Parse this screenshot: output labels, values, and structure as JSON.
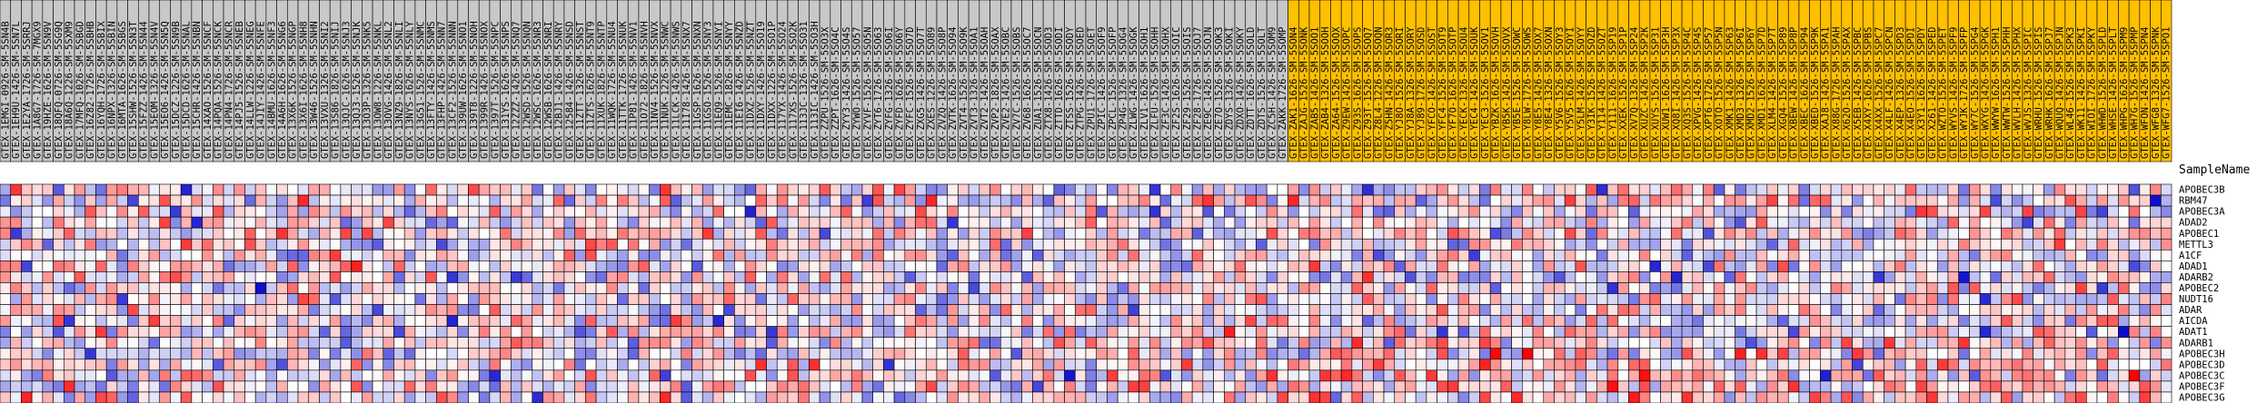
{
  "chart_data": {
    "type": "heatmap",
    "sample_name_label": "SampleName",
    "rows": [
      "APOBEC3B",
      "RBM47",
      "APOBEC3A",
      "ADAD2",
      "APOBEC1",
      "METTL3",
      "A1CF",
      "ADAD1",
      "ADARB2",
      "APOBEC2",
      "NUDT16",
      "ADAR",
      "AICDA",
      "ADAT1",
      "ADARB1",
      "APOBEC3H",
      "APOBEC3D",
      "APOBEC3C",
      "APOBEC3F",
      "APOBEC3G"
    ],
    "columns": [
      "GTEX-1EMGI-0926-SM-5SN4B",
      "GTEX-1EH9U-1426-SM-5SN7L",
      "GTEX-1E2YA-1726-SM-5SRRJ",
      "GTEX-1A8G7-1726-SM-7MGX9",
      "GTEX-19HZE-1626-SM-5SN9V",
      "GTEX-18QFQ-0726-SM-5SG9Q",
      "GTEX-18A6Q-1226-SM-5SXM9",
      "GTEX-17MFQ-1026-SM-5SBGD",
      "GTEX-16Z82-1726-SM-5SBHB",
      "GTEX-16YQH-1726-SM-5SBIX",
      "GTEX-16NPX-1326-SM-5SBIN",
      "GTEX-16MTA-1626-SM-5SBGS",
      "GTEX-15SHW-1526-SM-5SN3T",
      "GTEX-15FZZ-1426-SM-5SN44",
      "GTEX-15EOM-1326-SM-5SN4V",
      "GTEX-15EO6-1426-SM-5SN5Q",
      "GTEX-15DCZ-1226-SM-5SN9B",
      "GTEX-15DCD-1626-SM-5SNAL",
      "GTEX-15CHR-1426-SM-5SNBN",
      "GTEX-14XAO-1526-SM-5SNCF",
      "GTEX-14PQA-1526-SM-5SNCK",
      "GTEX-14PN4-1726-SM-5SNCR",
      "GTEX-14PJ5-1526-SM-5SNEB",
      "GTEX-14LLW-1226-SM-5SNEG",
      "GTEX-14JIY-1426-SM-5SNFE",
      "GTEX-14BMU-1626-SM-5SNF3",
      "GTEX-14A6H-1626-SM-5SNG6",
      "GTEX-13X6K-1526-SM-5SNGP",
      "GTEX-13X6I-1626-SM-5SNH8",
      "GTEX-13W46-1526-SM-5SNHN",
      "GTEX-13VXU-1326-SM-5SNI2",
      "GTEX-13S86-1826-SM-5SNIJ",
      "GTEX-13QJC-1626-SM-5SNJ3",
      "GTEX-13QJ3-1526-SM-5SNJK",
      "GTEX-13O3P-1326-SM-5SNK5",
      "GTEX-13OW8-1226-SM-5SNKL",
      "GTEX-13OVG-1426-SM-5SNL2",
      "GTEX-13NZ9-1826-SM-5SNLI",
      "GTEX-13NYS-1626-SM-5SNLY",
      "GTEX-13G51-1526-SM-5SNMC",
      "GTEX-13FTY-1426-SM-5SNMS",
      "GTEX-13FHP-1426-SM-5SNN7",
      "GTEX-13CF2-1526-SM-5SNNN",
      "GTEX-139UW-1626-SM-5SNO1",
      "GTEX-139T8-1226-SM-5SNOH",
      "GTEX-1399R-1426-SM-5SNOX",
      "GTEX-1397T-1526-SM-5SNPC",
      "GTEX-131YS-1626-SM-5SNPS",
      "GTEX-12ZZZ-1426-SM-5SNQ7",
      "GTEX-12WSD-1526-SM-5SNQN",
      "GTEX-12WSC-1626-SM-5SNR3",
      "GTEX-12WSB-1626-SM-5SNRI",
      "GTEX-12BJ1-1426-SM-5SNRY",
      "GTEX-12584-1426-SM-5SNSD",
      "GTEX-11ZTT-1326-SM-5SNST",
      "GTEX-11ZTS-1626-SM-5SNT9",
      "GTEX-11XUK-1826-SM-5SNTP",
      "GTEX-11WQK-1726-SM-5SNU4",
      "GTEX-11TTK-1726-SM-5SNUK",
      "GTEX-11P81-1426-SM-5SNV1",
      "GTEX-11O72-1826-SM-5SNVH",
      "GTEX-11NV4-1526-SM-5SNVX",
      "GTEX-11NUK-1226-SM-5SNWC",
      "GTEX-11LCK-1426-SM-5SNWS",
      "GTEX-11I78-1426-SM-5SNX7",
      "GTEX-11GSP-1626-SM-5SNXN",
      "GTEX-11GSO-1526-SM-5SNY3",
      "GTEX-11EQ9-1526-SM-5SNYI",
      "GTEX-11EMC-1826-SM-5SNYY",
      "GTEX-11EI6-1426-SM-5SNZD",
      "GTEX-11DXZ-1526-SM-5SNZT",
      "GTEX-11DXY-1426-SM-5SO19",
      "GTEX-11DXX-1226-SM-5SO1P",
      "GTEX-117YX-1426-SM-5SO24",
      "GTEX-117XS-1526-SM-5SO2K",
      "GTEX-113JC-1326-SM-5SO31",
      "GTEX-113IC-1426-SM-5SO3H",
      "GTEX-ZZPU-1526-SM-5SO3X",
      "GTEX-ZZPT-1626-SM-5SO4C",
      "GTEX-ZYY3-1426-SM-5SO4S",
      "GTEX-ZYWO-1526-SM-5SO57",
      "GTEX-ZYVF-1526-SM-5SO5N",
      "GTEX-ZYT6-1726-SM-5SO63",
      "GTEX-ZYFG-1326-SM-5SO6I",
      "GTEX-ZYFD-1626-SM-5SO6Y",
      "GTEX-ZYFC-1526-SM-5SO7D",
      "GTEX-ZXG5-1426-SM-5SO7T",
      "GTEX-ZXES-1226-SM-5SO89",
      "GTEX-ZVZQ-1426-SM-5SO8P",
      "GTEX-ZVTK-1626-SM-5SO94",
      "GTEX-ZVT4-1526-SM-5SO9K",
      "GTEX-ZVT3-1326-SM-5SOA1",
      "GTEX-ZVT2-1426-SM-5SOAH",
      "GTEX-ZVP2-1826-SM-5SOAX",
      "GTEX-ZVE2-1426-SM-5SOBC",
      "GTEX-ZV7C-1526-SM-5SOBS",
      "GTEX-ZV68-1626-SM-5SOC7",
      "GTEX-ZUA1-1526-SM-5SOCN",
      "GTEX-ZTX8-1426-SM-5SOD3",
      "GTEX-ZTTD-1626-SM-5SODI",
      "GTEX-ZTSS-1526-SM-5SODY",
      "GTEX-ZTPG-1426-SM-5SOED",
      "GTEX-ZPU1-1726-SM-5SOET",
      "GTEX-ZPIC-1426-SM-5SOF9",
      "GTEX-ZPCL-1526-SM-5SOFP",
      "GTEX-ZP4G-1326-SM-5SOG4",
      "GTEX-ZLWG-1426-SM-5SOGK",
      "GTEX-ZLV1-1626-SM-5SOH1",
      "GTEX-ZLFU-1526-SM-5SOHH",
      "GTEX-ZF3C-1426-SM-5SOHX",
      "GTEX-ZF2S-1626-SM-5SOIC",
      "GTEX-ZF29-1526-SM-5SOIS",
      "GTEX-ZF28-1726-SM-5SOJ7",
      "GTEX-ZE9C-1426-SM-5SOJN",
      "GTEX-ZE7O-1526-SM-5SOK3",
      "GTEX-ZDYS-1326-SM-5SOKI",
      "GTEX-ZDXO-1426-SM-5SOKY",
      "GTEX-ZDTT-1626-SM-5SOLD",
      "GTEX-ZDTS-1526-SM-5SOLT",
      "GTEX-ZC5H-1426-SM-5SOM9",
      "GTEX-ZAKK-1726-SM-5SOMP",
      "GTEX-ZAK1-1626-SM-5SON4",
      "GTEX-ZAJG-1526-SM-5SONK",
      "GTEX-ZAB5-1426-SM-5SOO1",
      "GTEX-ZAB4-1326-SM-5SOOH",
      "GTEX-ZA64-1526-SM-5SOOX",
      "GTEX-Z9EW-1426-SM-5SOPC",
      "GTEX-Z93S-1626-SM-5SOPS",
      "GTEX-Z93T-1526-SM-5SOQ7",
      "GTEX-Z8L4-1226-SM-5SOQN",
      "GTEX-Z5HN-1426-SM-5SOR3",
      "GTEX-YJ8O-1526-SM-5SORI",
      "GTEX-YJ8A-1326-SM-5SORY",
      "GTEX-YJ89-1726-SM-5SOSD",
      "GTEX-YFCO-1426-SM-5SOST",
      "GTEX-YFC4-1526-SM-5SOT9",
      "GTEX-YF7O-1626-SM-5SOTP",
      "GTEX-YECK-1326-SM-5SOU4",
      "GTEX-YEC4-1426-SM-5SOUK",
      "GTEX-YEC3-1526-SM-5SOV1",
      "GTEX-YBZK-1626-SM-5SOVH",
      "GTEX-YB5K-1426-SM-5SOVX",
      "GTEX-YB5E-1526-SM-5SOWC",
      "GTEX-Y8LW-1726-SM-5SOWS",
      "GTEX-Y8E5-1426-SM-5SOX7",
      "GTEX-Y8E4-1326-SM-5SOXN",
      "GTEX-Y5V6-1526-SM-5SOY3",
      "GTEX-Y5V5-1626-SM-5SOYI",
      "GTEX-Y5LM-1426-SM-5SOYY",
      "GTEX-Y3IK-1526-SM-5SOZD",
      "GTEX-Y114-1426-SM-5SOZT",
      "GTEX-Y111-1626-SM-5SP19",
      "GTEX-XXEK-1526-SM-5SP1P",
      "GTEX-XV7Q-1326-SM-5SP24",
      "GTEX-XUZC-1426-SM-5SP2K",
      "GTEX-XUYS-1526-SM-5SP31",
      "GTEX-XUW1-1626-SM-5SP3H",
      "GTEX-XQ8I-1426-SM-5SP3X",
      "GTEX-XQ3S-1526-SM-5SP4C",
      "GTEX-XPVG-1426-SM-5SP4S",
      "GTEX-XPT6-1726-SM-5SP57",
      "GTEX-XOTO-1526-SM-5SP5N",
      "GTEX-XMK1-1426-SM-5SP63",
      "GTEX-XMD3-1326-SM-5SP6I",
      "GTEX-XMD2-1526-SM-5SP6Y",
      "GTEX-XMD1-1626-SM-5SP7D",
      "GTEX-XLM4-1426-SM-5SP7T",
      "GTEX-XGQ4-1526-SM-5SP89",
      "GTEX-XBEW-1426-SM-5SP8P",
      "GTEX-XBEC-1626-SM-5SP94",
      "GTEX-XBED-1526-SM-5SP9K",
      "GTEX-XAJ8-1426-SM-5SPA1",
      "GTEX-X88G-1726-SM-5SPAH",
      "GTEX-X62O-1526-SM-5SPAX",
      "GTEX-X5EB-1426-SM-5SPBC",
      "GTEX-X4XY-1626-SM-5SPBS",
      "GTEX-X4XX-1526-SM-5SPC7",
      "GTEX-X4LF-1426-SM-5SPCN",
      "GTEX-X4EP-1326-SM-5SPD3",
      "GTEX-X4EO-1526-SM-5SPDI",
      "GTEX-X3Y1-1626-SM-5SPDY",
      "GTEX-X261-1426-SM-5SPED",
      "GTEX-WZTO-1526-SM-5SPET",
      "GTEX-WYVS-1426-SM-5SPF9",
      "GTEX-WYJK-1726-SM-5SPFP",
      "GTEX-WY7C-1526-SM-5SPG4",
      "GTEX-WXYG-1426-SM-5SPGK",
      "GTEX-WWYW-1626-SM-5SPH1",
      "GTEX-WWTW-1526-SM-5SPHH",
      "GTEX-WVLH-1426-SM-5SPHX",
      "GTEX-WVJS-1326-SM-5SPIC",
      "GTEX-WRHU-1526-SM-5SPIS",
      "GTEX-WRHK-1626-SM-5SPJ7",
      "GTEX-WQUQ-1426-SM-5SPJN",
      "GTEX-WL46-1526-SM-5SPK3",
      "GTEX-WK11-1426-SM-5SPKI",
      "GTEX-WIOI-1726-SM-5SPKY",
      "GTEX-WHWD-1526-SM-5SPLD",
      "GTEX-WHSE-1426-SM-5SPLT",
      "GTEX-WHPG-1626-SM-5SPM9",
      "GTEX-WH7G-1526-SM-5SPMP",
      "GTEX-WFON-1426-SM-5SPN4",
      "GTEX-WFG8-1326-SM-5SPNK",
      "GTEX-WFG7-1526-SM-5SPO1"
    ],
    "highlight_start_index": 121,
    "colors": {
      "low": "#0000cc",
      "mid": "#ffffff",
      "high": "#ff0000",
      "grid": "#000000",
      "header_default": "#c8c8c8",
      "header_highlight": "#ffc000"
    },
    "value_range": [
      -3,
      3
    ],
    "values_seed": 7919
  }
}
